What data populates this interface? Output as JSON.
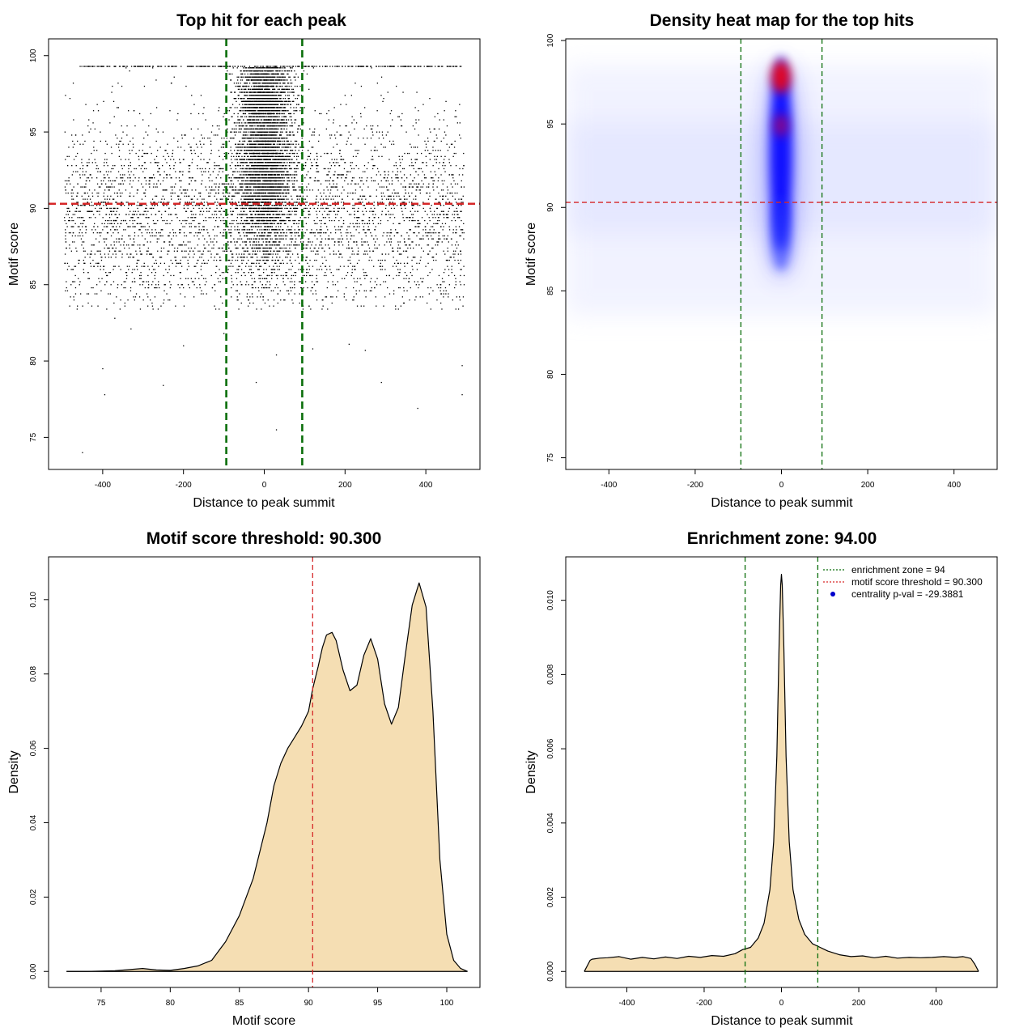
{
  "chart_data": [
    {
      "id": "scatter",
      "type": "scatter",
      "title": "Top hit for each peak",
      "xlabel": "Distance to peak summit",
      "ylabel": "Motif score",
      "xlim": [
        -534,
        534
      ],
      "ylim": [
        72.9,
        101.1
      ],
      "xticks": [
        -400,
        -200,
        0,
        200,
        400
      ],
      "yticks": [
        75,
        80,
        85,
        90,
        95,
        100
      ],
      "vlines": [
        -94,
        94
      ],
      "hline": 90.3,
      "line_colors": {
        "vertical": "#0a6e0a",
        "horizontal": "#d62728"
      },
      "point_color": "#000000",
      "grid": false,
      "sample_points": [
        [
          -450,
          74.0
        ],
        [
          -400,
          79.5
        ],
        [
          -395,
          77.8
        ],
        [
          -250,
          78.4
        ],
        [
          -200,
          81.0
        ],
        [
          30,
          75.5
        ],
        [
          -20,
          78.6
        ],
        [
          30,
          80.4
        ],
        [
          120,
          80.8
        ],
        [
          380,
          76.9
        ],
        [
          490,
          79.7
        ],
        [
          490,
          77.8
        ],
        [
          -370,
          82.8
        ],
        [
          -330,
          82.1
        ],
        [
          250,
          80.7
        ],
        [
          290,
          78.6
        ],
        [
          210,
          81.1
        ],
        [
          -100,
          81.8
        ]
      ]
    },
    {
      "id": "heatmap",
      "type": "heatmap",
      "title": "Density heat map for the top hits",
      "xlabel": "Distance to peak summit",
      "ylabel": "Motif score",
      "xlim": [
        -500,
        500
      ],
      "ylim": [
        74.3,
        100.1
      ],
      "xticks": [
        -400,
        -200,
        0,
        200,
        400
      ],
      "yticks": [
        75,
        80,
        85,
        90,
        95,
        100
      ],
      "vlines": [
        -94,
        94
      ],
      "hline": 90.3,
      "color_scale": [
        "#ffffff",
        "#0000ff",
        "#ff0000"
      ],
      "hotspots": [
        {
          "x": 0,
          "y": 97.9,
          "intensity": "high"
        },
        {
          "x": 0,
          "y": 94.8,
          "intensity": "medium"
        }
      ]
    },
    {
      "id": "score_density",
      "type": "area",
      "title": "Motif score threshold: 90.300",
      "xlabel": "Motif score",
      "ylabel": "Density",
      "xlim": [
        71.2,
        102.4
      ],
      "ylim": [
        -0.0043,
        0.1115
      ],
      "xticks": [
        75,
        80,
        85,
        90,
        95,
        100
      ],
      "yticks": [
        0.0,
        0.02,
        0.04,
        0.06,
        0.08,
        0.1
      ],
      "ytick_labels": [
        "0.00",
        "0.02",
        "0.04",
        "0.06",
        "0.08",
        "0.10"
      ],
      "vline": 90.3,
      "fill_color": "#f5deb3",
      "x": [
        72.5,
        74,
        76,
        78,
        79,
        80,
        81,
        82,
        83,
        83.5,
        84,
        85,
        86,
        87,
        87.5,
        88,
        88.5,
        89,
        89.5,
        90,
        90.3,
        90.7,
        91,
        91.3,
        91.7,
        92,
        92.5,
        93,
        93.5,
        94,
        94.5,
        95,
        95.5,
        96,
        96.5,
        97,
        97.5,
        98,
        98.5,
        99,
        99.5,
        100,
        100.5,
        101,
        101.5
      ],
      "values": [
        0.0,
        0.0,
        0.0002,
        0.0008,
        0.0004,
        0.0003,
        0.0008,
        0.0015,
        0.003,
        0.0055,
        0.008,
        0.015,
        0.025,
        0.04,
        0.05,
        0.056,
        0.06,
        0.063,
        0.066,
        0.07,
        0.076,
        0.082,
        0.087,
        0.0905,
        0.0912,
        0.089,
        0.081,
        0.0755,
        0.077,
        0.085,
        0.0895,
        0.084,
        0.072,
        0.0665,
        0.071,
        0.085,
        0.0985,
        0.1045,
        0.098,
        0.07,
        0.03,
        0.01,
        0.003,
        0.0008,
        0.0
      ]
    },
    {
      "id": "distance_density",
      "type": "area",
      "title": "Enrichment zone: 94.00",
      "xlabel": "Distance to peak summit",
      "ylabel": "Density",
      "xlim": [
        -558,
        558
      ],
      "ylim": [
        -0.00043,
        0.01117
      ],
      "xticks": [
        -400,
        -200,
        0,
        200,
        400
      ],
      "yticks": [
        0.0,
        0.002,
        0.004,
        0.006,
        0.008,
        0.01
      ],
      "ytick_labels": [
        "0.000",
        "0.002",
        "0.004",
        "0.006",
        "0.008",
        "0.010"
      ],
      "vlines": [
        -94,
        94
      ],
      "fill_color": "#f5deb3",
      "x": [
        -510,
        -495,
        -490,
        -470,
        -450,
        -420,
        -390,
        -360,
        -330,
        -300,
        -270,
        -240,
        -210,
        -180,
        -150,
        -120,
        -100,
        -80,
        -60,
        -45,
        -30,
        -20,
        -12,
        -6,
        -2,
        0,
        2,
        6,
        12,
        20,
        30,
        45,
        60,
        80,
        100,
        120,
        150,
        180,
        210,
        240,
        270,
        300,
        330,
        360,
        390,
        420,
        450,
        470,
        490,
        500,
        510
      ],
      "values": [
        0.0,
        0.0003,
        0.00033,
        0.00036,
        0.00037,
        0.0004,
        0.00033,
        0.00038,
        0.00034,
        0.00039,
        0.00035,
        0.00041,
        0.00038,
        0.00043,
        0.00041,
        0.00048,
        0.00059,
        0.00065,
        0.0009,
        0.0013,
        0.0022,
        0.0035,
        0.0058,
        0.0088,
        0.0104,
        0.0107,
        0.0104,
        0.0088,
        0.0058,
        0.0035,
        0.0022,
        0.0014,
        0.001,
        0.00075,
        0.00065,
        0.00055,
        0.00045,
        0.0004,
        0.00042,
        0.00037,
        0.00041,
        0.00036,
        0.00038,
        0.00037,
        0.00038,
        0.0004,
        0.00038,
        0.0004,
        0.00035,
        0.0002,
        0.0
      ],
      "legend": {
        "placement": "top-right",
        "entries": [
          {
            "label": "enrichment zone = 94",
            "color": "#0a6e0a",
            "style": "dotted-line"
          },
          {
            "label": "motif score threshold = 90.300",
            "color": "#d62728",
            "style": "dotted-line"
          },
          {
            "label": "centrality p-val = -29.3881",
            "color": "#0000cc",
            "style": "dot"
          }
        ]
      }
    }
  ]
}
